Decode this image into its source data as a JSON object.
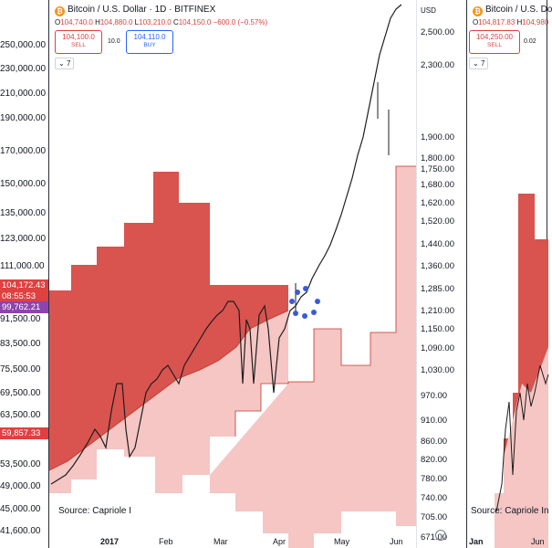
{
  "left_axis": {
    "ticks": [
      "250,000.00",
      "230,000.00",
      "210,000.00",
      "190,000.00",
      "170,000.00",
      "150,000.00",
      "135,000.00",
      "123,000.00",
      "111,000.00",
      "91,500.00",
      "83,500.00",
      "75,500.00",
      "69,500.00",
      "63,500.00",
      "53,500.00",
      "49,000.00",
      "45,000.00",
      "41,600.00"
    ],
    "badges": [
      {
        "label": "104,172.43",
        "color": "#e04040"
      },
      {
        "label": "08:55:53",
        "color": "#e04040"
      },
      {
        "label": "99,762.21",
        "color": "#8e44ad"
      },
      {
        "label": "59,857.33",
        "color": "#e04040"
      }
    ]
  },
  "main_panel": {
    "symbol_title": "Bitcoin / U.S. Dollar · 1D · BITFINEX",
    "coin_glyph": "₿",
    "ohlc": {
      "o": "O",
      "o_val": "104,740.0",
      "h": "H",
      "h_val": "104,880.0",
      "l": "L",
      "l_val": "103,210.0",
      "c": "C",
      "c_val": "104,150.0",
      "chg": "−600.0 (−0.57%)"
    },
    "sell": {
      "price": "104,100.0",
      "label": "SELL"
    },
    "spread": "10.0",
    "buy": {
      "price": "104,110.0",
      "label": "BUY"
    },
    "collapse_label": "7",
    "source": "Source: Capriole I",
    "x_ticks": [
      "2017",
      "Feb",
      "Mar",
      "Apr",
      "May",
      "Jun"
    ],
    "price_axis": {
      "currency": "USD",
      "ticks": [
        "2,500.00",
        "2,300.00",
        "1,900.00",
        "1,800.00",
        "1,750.00",
        "1,680.00",
        "1,620.00",
        "1,520.00",
        "1,440.00",
        "1,360.00",
        "1,285.00",
        "1,210.00",
        "1,150.00",
        "1,090.00",
        "1,030.00",
        "970.00",
        "910.00",
        "860.00",
        "820.00",
        "780.00",
        "740.00",
        "705.00",
        "671.00"
      ]
    },
    "dots_color": "#3a5bd6"
  },
  "right_panel": {
    "symbol_title": "Bitcoin / U.S. Do",
    "coin_glyph": "₿",
    "ohlc": {
      "o": "O",
      "o_val": "104,817.83",
      "h": "H",
      "h_val": "104,980"
    },
    "sell": {
      "price": "104,250.00",
      "label": "SELL"
    },
    "spread": "0.02",
    "collapse_label": "7",
    "source": "Source: Capriole In",
    "x_ticks": [
      "Jan",
      "Jun"
    ]
  },
  "colors": {
    "cloud_dark": "#d9534f",
    "cloud_light": "#f5c6c4",
    "candle": "#1e1e1e",
    "sell": "#e04040",
    "buy": "#2962ff"
  }
}
